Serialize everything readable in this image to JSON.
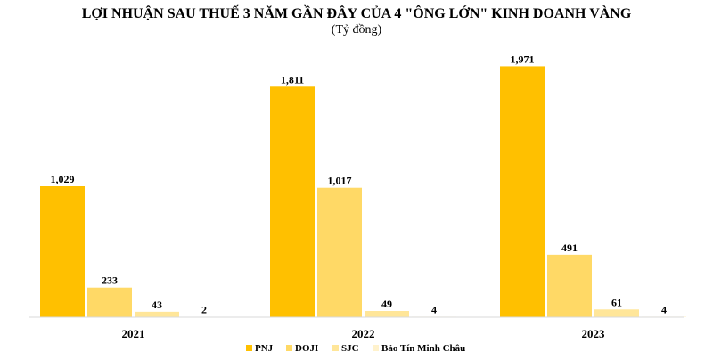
{
  "chart_data": {
    "type": "bar",
    "title": "LỢI NHUẬN SAU THUẾ 3 NĂM GẦN ĐÂY CỦA 4 \"ÔNG LỚN\" KINH DOANH VÀNG",
    "subtitle": "(Tỷ đồng)",
    "categories": [
      "2021",
      "2022",
      "2023"
    ],
    "series": [
      {
        "name": "PNJ",
        "values": [
          1029,
          1811,
          1971
        ],
        "labels": [
          "1,029",
          "1,811",
          "1,971"
        ],
        "color": "#FFC000"
      },
      {
        "name": "DOJI",
        "values": [
          233,
          1017,
          491
        ],
        "labels": [
          "233",
          "1,017",
          "491"
        ],
        "color": "#FFD966"
      },
      {
        "name": "SJC",
        "values": [
          43,
          49,
          61
        ],
        "labels": [
          "43",
          "49",
          "61"
        ],
        "color": "#FFE699"
      },
      {
        "name": "Bảo Tín Minh Châu",
        "values": [
          2,
          4,
          4
        ],
        "labels": [
          "2",
          "4",
          "4"
        ],
        "color": "#FFF2CC"
      }
    ],
    "ylim": [
      0,
      2100
    ],
    "grid": false,
    "legend": "bottom"
  }
}
